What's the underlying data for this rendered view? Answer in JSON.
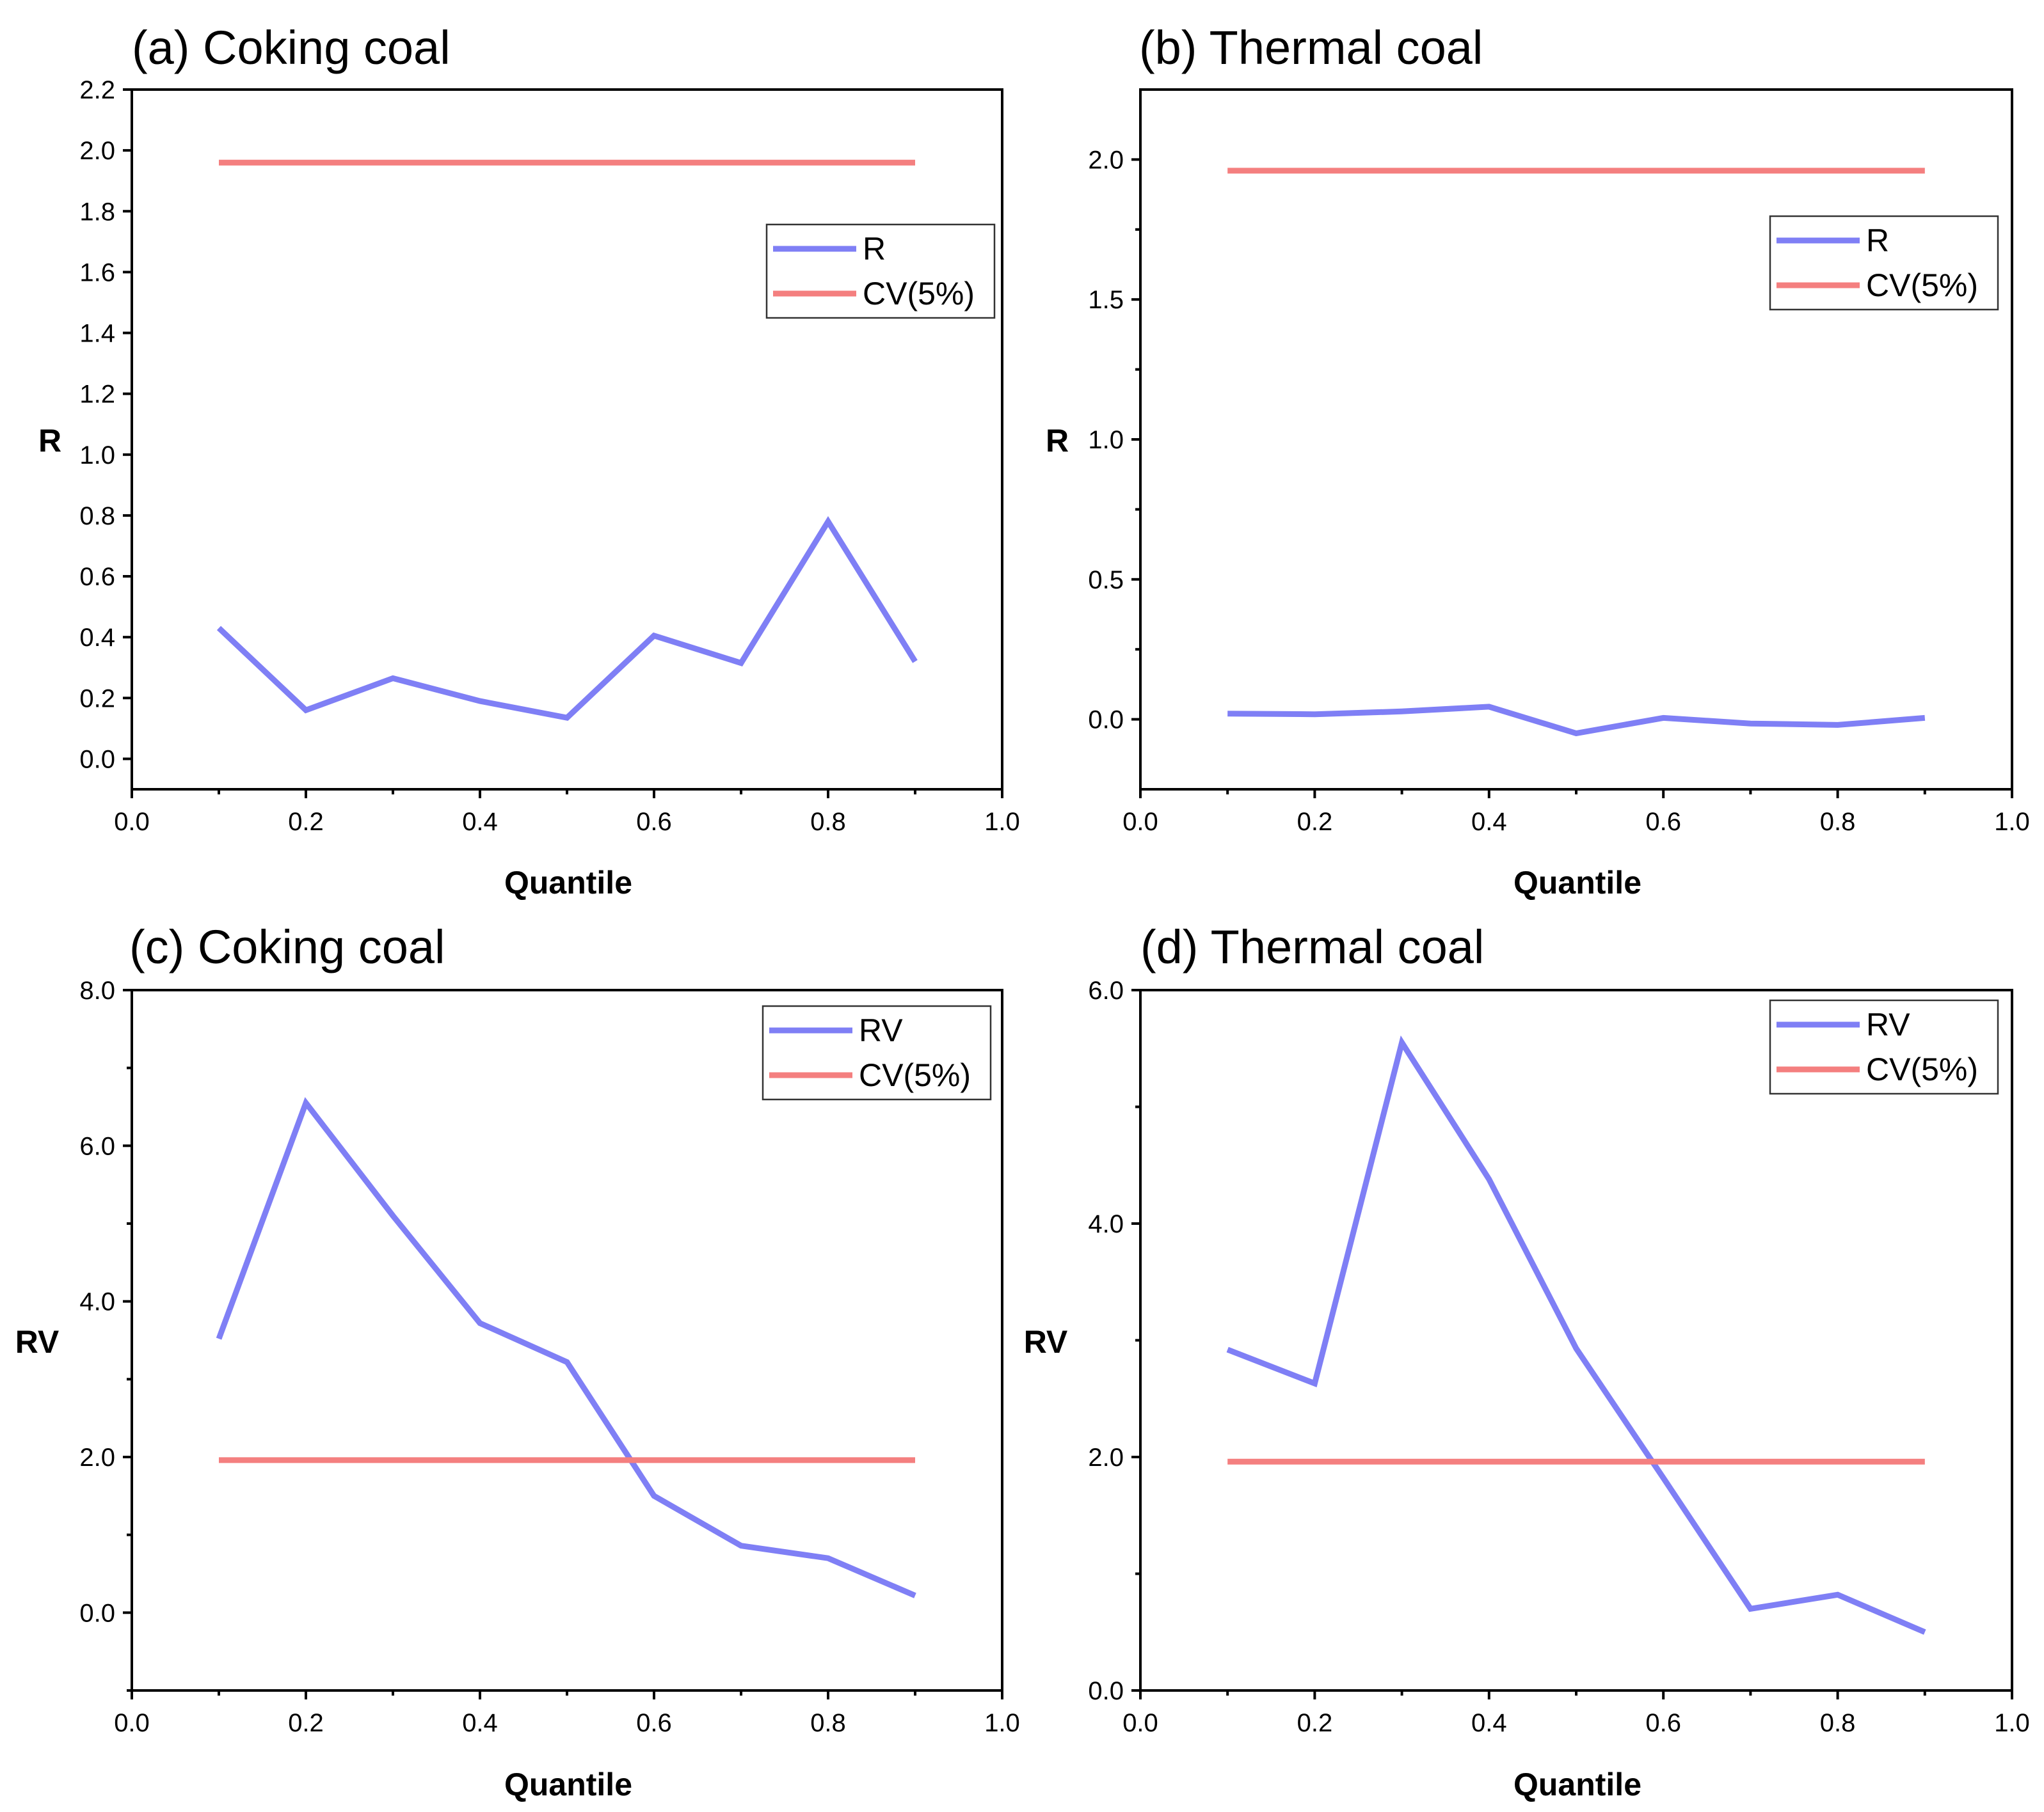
{
  "colors": {
    "series": "#7f7ff5",
    "cv": "#f47f7f"
  },
  "chart_data": [
    {
      "type": "line",
      "title": "(a) Coking coal",
      "xlabel": "Quantile",
      "ylabel": "R",
      "xlim": [
        0.0,
        1.0
      ],
      "ylim": [
        -0.1,
        2.2
      ],
      "xticks": [
        0.0,
        0.2,
        0.4,
        0.6,
        0.8,
        1.0
      ],
      "xtick_labels": [
        "0.0",
        "0.2",
        "0.4",
        "0.6",
        "0.8",
        "1.0"
      ],
      "yticks": [
        0.0,
        0.2,
        0.4,
        0.6,
        0.8,
        1.0,
        1.2,
        1.4,
        1.6,
        1.8,
        2.0,
        2.2
      ],
      "ytick_labels": [
        "0.0",
        "0.2",
        "0.4",
        "0.6",
        "0.8",
        "1.0",
        "1.2",
        "1.4",
        "1.6",
        "1.8",
        "2.0",
        "2.2"
      ],
      "yminor": [],
      "legend_position": "upper-right",
      "series": [
        {
          "name": "R",
          "color": "#7f7ff5",
          "x": [
            0.1,
            0.2,
            0.3,
            0.4,
            0.5,
            0.6,
            0.7,
            0.8,
            0.9
          ],
          "y": [
            0.43,
            0.16,
            0.265,
            0.19,
            0.135,
            0.405,
            0.315,
            0.78,
            0.32
          ]
        },
        {
          "name": "CV(5%)",
          "color": "#f47f7f",
          "x": [
            0.1,
            0.9
          ],
          "y": [
            1.96,
            1.96
          ]
        }
      ]
    },
    {
      "type": "line",
      "title": "(b) Thermal coal",
      "xlabel": "Quantile",
      "ylabel": "R",
      "xlim": [
        0.0,
        1.0
      ],
      "ylim": [
        -0.25,
        2.25
      ],
      "xticks": [
        0.0,
        0.2,
        0.4,
        0.6,
        0.8,
        1.0
      ],
      "xtick_labels": [
        "0.0",
        "0.2",
        "0.4",
        "0.6",
        "0.8",
        "1.0"
      ],
      "yticks": [
        0.0,
        0.5,
        1.0,
        1.5,
        2.0
      ],
      "ytick_labels": [
        "0.0",
        "0.5",
        "1.0",
        "1.5",
        "2.0"
      ],
      "yminor": [
        0.25,
        0.75,
        1.25,
        1.75
      ],
      "legend_position": "upper-right",
      "series": [
        {
          "name": "R",
          "color": "#7f7ff5",
          "x": [
            0.1,
            0.2,
            0.3,
            0.4,
            0.5,
            0.6,
            0.7,
            0.8,
            0.9
          ],
          "y": [
            0.02,
            0.018,
            0.028,
            0.045,
            -0.05,
            0.005,
            -0.015,
            -0.02,
            0.005
          ]
        },
        {
          "name": "CV(5%)",
          "color": "#f47f7f",
          "x": [
            0.1,
            0.9
          ],
          "y": [
            1.96,
            1.96
          ]
        }
      ]
    },
    {
      "type": "line",
      "title": "(c) Coking coal",
      "xlabel": "Quantile",
      "ylabel": "RV",
      "xlim": [
        0.0,
        1.0
      ],
      "ylim": [
        -1.0,
        8.0
      ],
      "xticks": [
        0.0,
        0.2,
        0.4,
        0.6,
        0.8,
        1.0
      ],
      "xtick_labels": [
        "0.0",
        "0.2",
        "0.4",
        "0.6",
        "0.8",
        "1.0"
      ],
      "yticks": [
        0.0,
        2.0,
        4.0,
        6.0,
        8.0
      ],
      "ytick_labels": [
        "0.0",
        "2.0",
        "4.0",
        "6.0",
        "8.0"
      ],
      "yminor": [
        -1.0,
        1.0,
        3.0,
        5.0,
        7.0
      ],
      "legend_position": "upper-right",
      "series": [
        {
          "name": "RV",
          "color": "#7f7ff5",
          "x": [
            0.1,
            0.2,
            0.3,
            0.4,
            0.5,
            0.6,
            0.7,
            0.8,
            0.9
          ],
          "y": [
            3.52,
            6.55,
            5.1,
            3.72,
            3.22,
            1.5,
            0.86,
            0.7,
            0.22
          ]
        },
        {
          "name": "CV(5%)",
          "color": "#f47f7f",
          "x": [
            0.1,
            0.9
          ],
          "y": [
            1.96,
            1.96
          ]
        }
      ]
    },
    {
      "type": "line",
      "title": "(d) Thermal coal",
      "xlabel": "Quantile",
      "ylabel": "RV",
      "xlim": [
        0.0,
        1.0
      ],
      "ylim": [
        0.0,
        6.0
      ],
      "xticks": [
        0.0,
        0.2,
        0.4,
        0.6,
        0.8,
        1.0
      ],
      "xtick_labels": [
        "0.0",
        "0.2",
        "0.4",
        "0.6",
        "0.8",
        "1.0"
      ],
      "yticks": [
        0.0,
        2.0,
        4.0,
        6.0
      ],
      "ytick_labels": [
        "0.0",
        "2.0",
        "4.0",
        "6.0"
      ],
      "yminor": [
        1.0,
        3.0,
        5.0
      ],
      "legend_position": "upper-right",
      "series": [
        {
          "name": "RV",
          "color": "#7f7ff5",
          "x": [
            0.1,
            0.2,
            0.3,
            0.4,
            0.5,
            0.6,
            0.7,
            0.8,
            0.9
          ],
          "y": [
            2.92,
            2.63,
            5.55,
            4.38,
            2.93,
            1.82,
            0.7,
            0.82,
            0.5
          ]
        },
        {
          "name": "CV(5%)",
          "color": "#f47f7f",
          "x": [
            0.1,
            0.9
          ],
          "y": [
            1.96,
            1.96
          ]
        }
      ]
    }
  ]
}
